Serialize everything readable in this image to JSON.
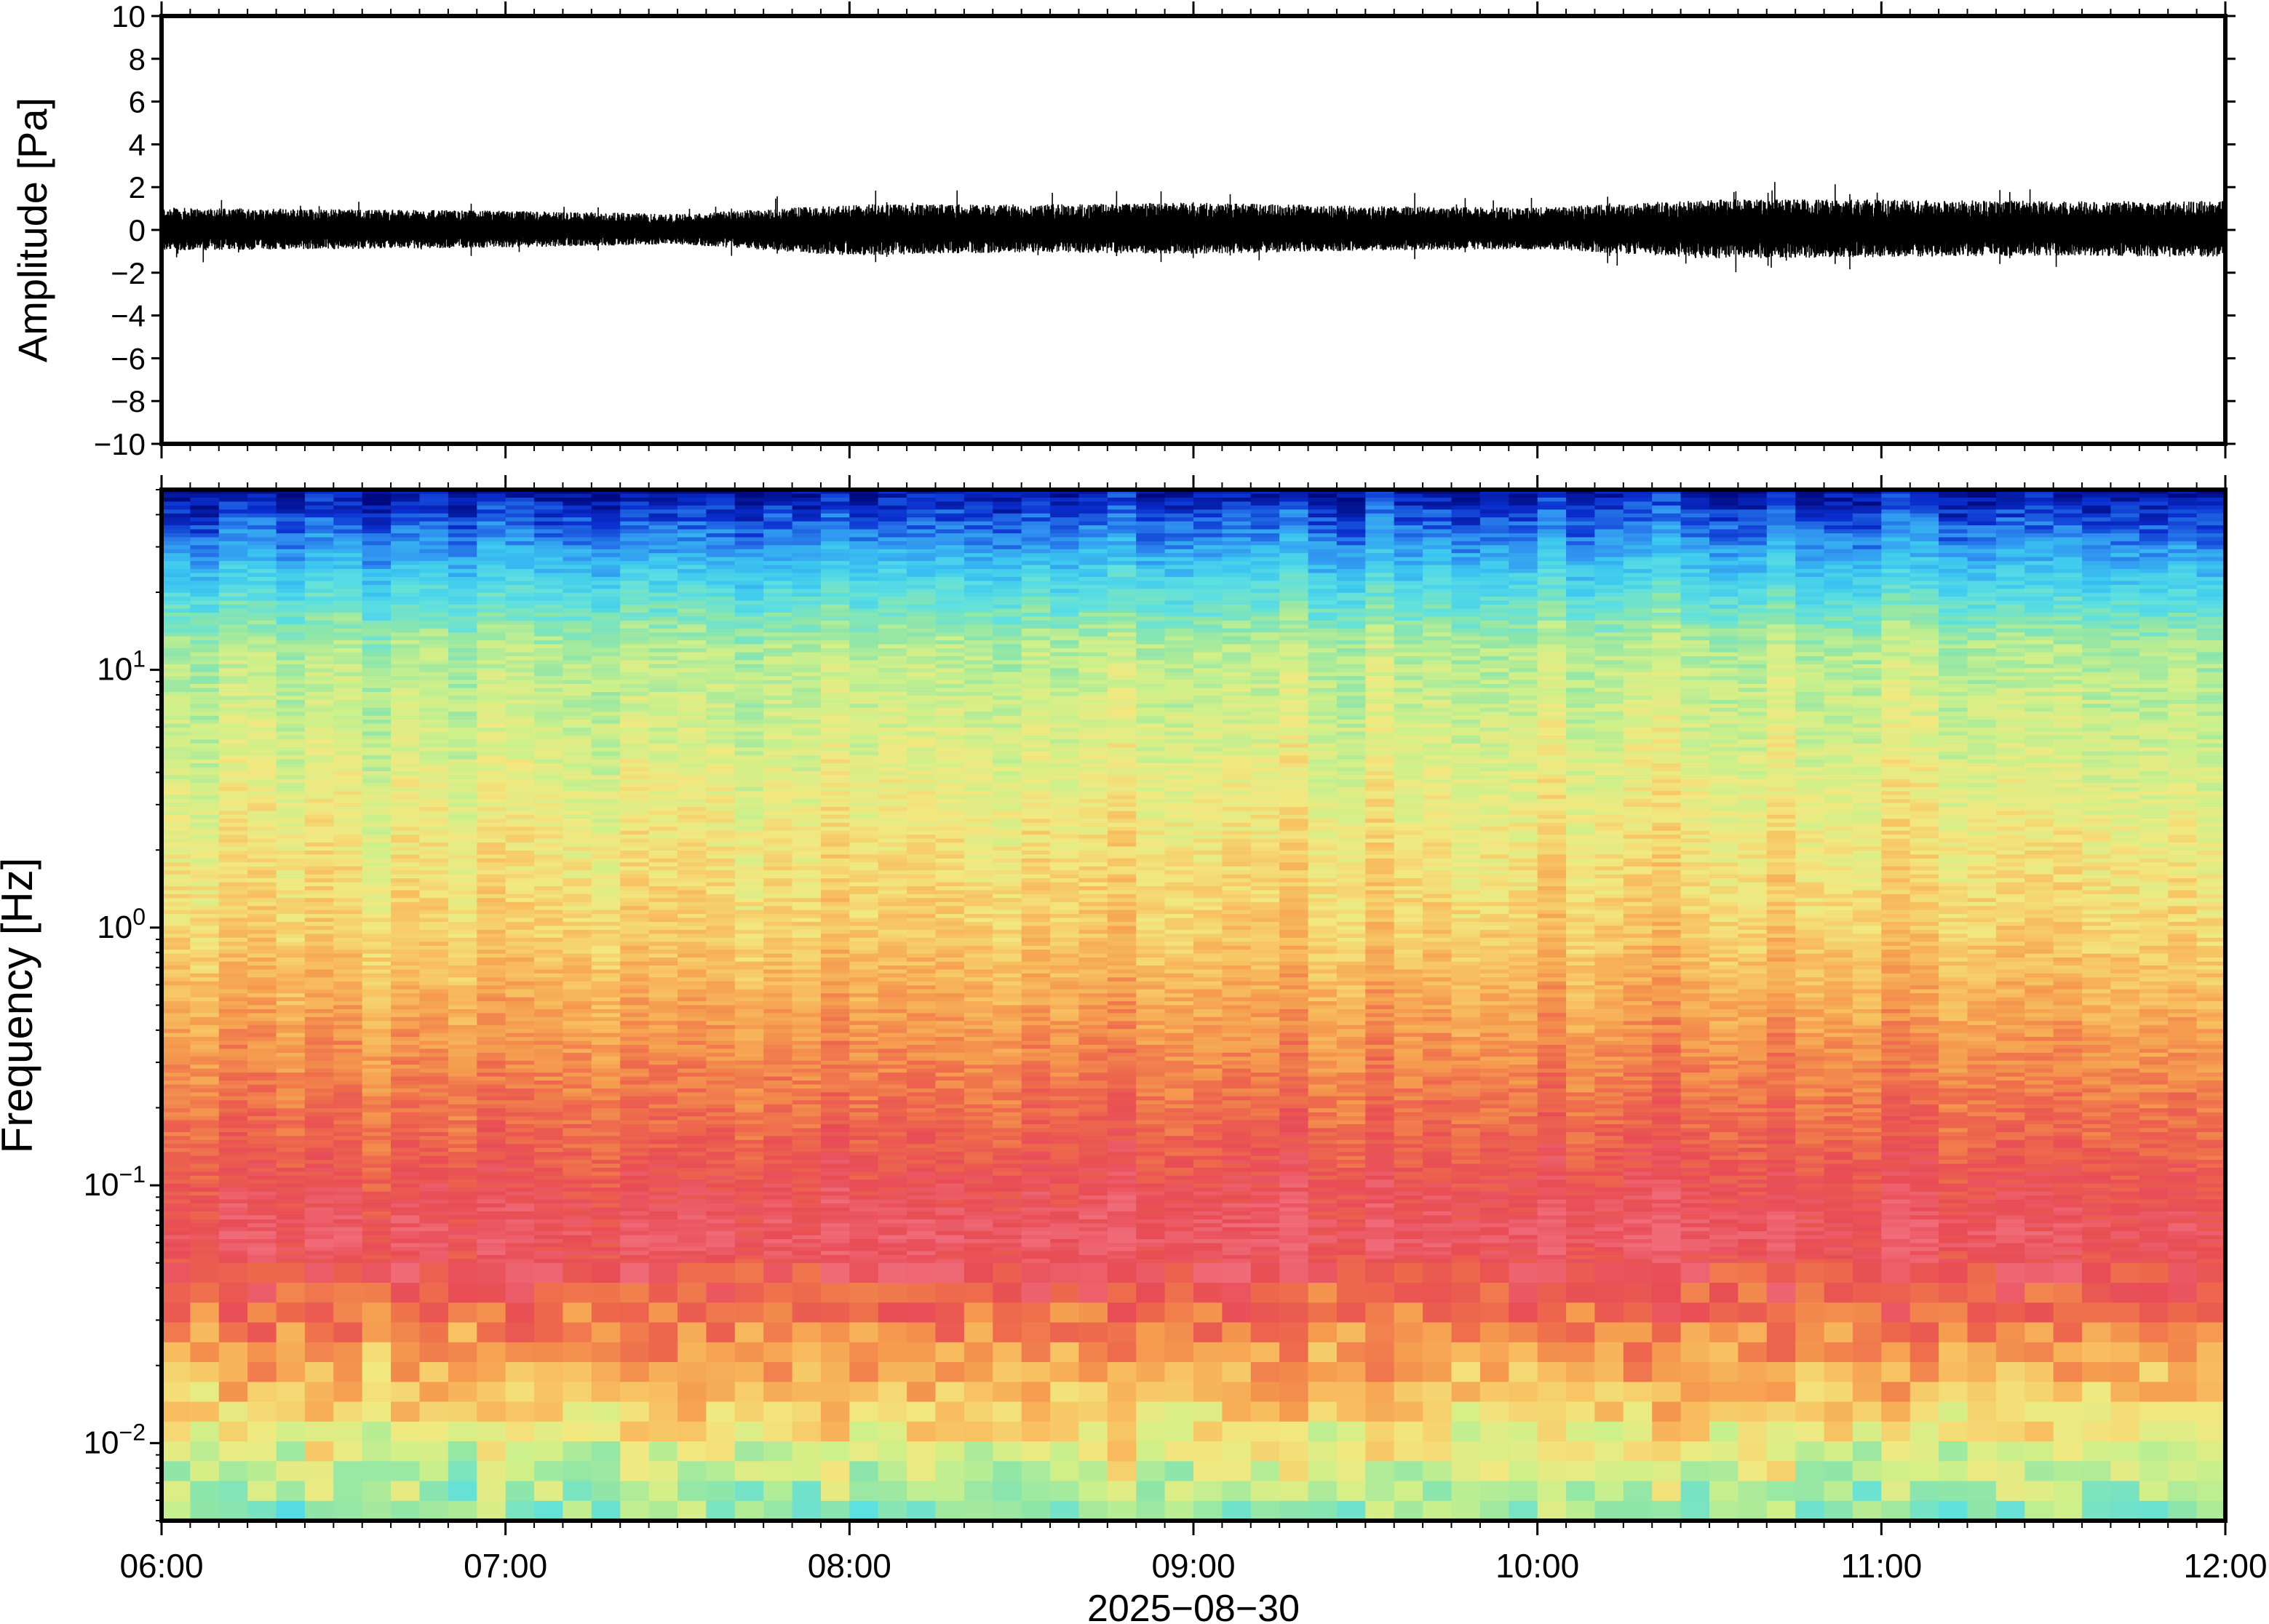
{
  "chart_data": [
    {
      "type": "line",
      "ylabel": "Amplitude [Pa]",
      "ylim": [
        -10,
        10
      ],
      "yticks": [
        "10",
        "8",
        "6",
        "4",
        "2",
        "0",
        "−2",
        "−4",
        "−6",
        "−8",
        "−10"
      ],
      "ytick_values": [
        10,
        8,
        6,
        4,
        2,
        0,
        -2,
        -4,
        -6,
        -8,
        -10
      ],
      "x_range": [
        "06:00",
        "12:00"
      ],
      "series": [
        {
          "color": "#000000",
          "description_values": "dense noise waveform centered on 0",
          "envelope_by_hour": [
            {
              "x": "06:00",
              "min": -1.3,
              "max": 1.4
            },
            {
              "x": "06:30",
              "min": -1.2,
              "max": 1.3
            },
            {
              "x": "07:00",
              "min": -1.1,
              "max": 1.2
            },
            {
              "x": "07:30",
              "min": -0.9,
              "max": 1.0
            },
            {
              "x": "08:00",
              "min": -1.6,
              "max": 1.6
            },
            {
              "x": "08:30",
              "min": -1.4,
              "max": 1.6
            },
            {
              "x": "09:00",
              "min": -1.5,
              "max": 1.7
            },
            {
              "x": "09:30",
              "min": -1.3,
              "max": 1.5
            },
            {
              "x": "10:00",
              "min": -1.2,
              "max": 1.4
            },
            {
              "x": "10:30",
              "min": -1.8,
              "max": 1.9
            },
            {
              "x": "11:00",
              "min": -1.7,
              "max": 1.9
            },
            {
              "x": "11:30",
              "min": -1.6,
              "max": 1.8
            },
            {
              "x": "12:00",
              "min": -1.7,
              "max": 1.8
            }
          ]
        }
      ]
    },
    {
      "type": "heatmap",
      "ylabel": "Frequency [Hz]",
      "yscale": "log",
      "ylim": [
        0.005,
        50
      ],
      "yticks": [
        {
          "value": 10,
          "base": "10",
          "exp": "1"
        },
        {
          "value": 1,
          "base": "10",
          "exp": "0"
        },
        {
          "value": 0.1,
          "base": "10",
          "exp": "−1"
        },
        {
          "value": 0.01,
          "base": "10",
          "exp": "−2"
        }
      ],
      "colormap": [
        "#000a80",
        "#0a2fd0",
        "#2f8ff0",
        "#3cc8f0",
        "#5ee0e0",
        "#8fe6a8",
        "#cdf08a",
        "#f2e880",
        "#f8c060",
        "#f59a4e",
        "#ee6a4c",
        "#e84c55",
        "#f06a78"
      ],
      "x_range": [
        "06:00",
        "12:00"
      ]
    }
  ],
  "xaxis": {
    "ticks": [
      "06:00",
      "07:00",
      "08:00",
      "09:00",
      "10:00",
      "11:00",
      "12:00"
    ],
    "label": "2025−08−30"
  }
}
